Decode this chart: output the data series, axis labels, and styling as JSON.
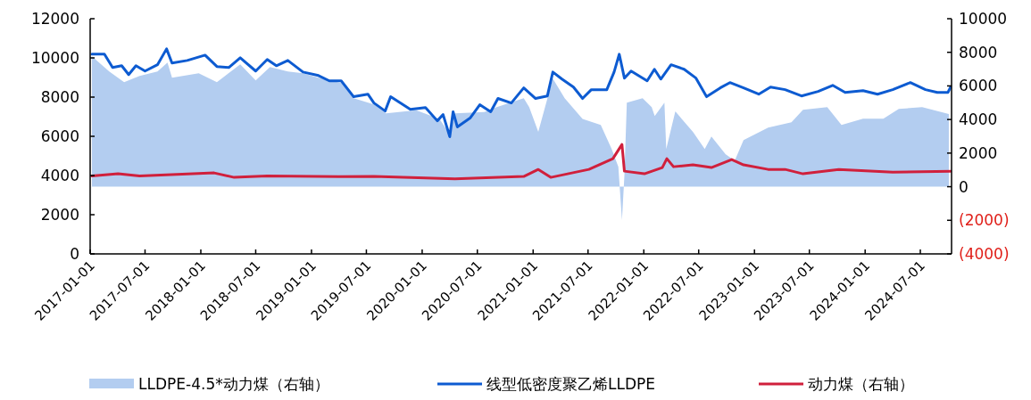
{
  "chart_data": {
    "type": "line",
    "xlim": [
      "2017-01-01",
      "2024-10-12"
    ],
    "xticks": [
      "2017-01-01",
      "2017-07-01",
      "2018-01-01",
      "2018-07-01",
      "2019-01-01",
      "2019-07-01",
      "2020-01-01",
      "2020-07-01",
      "2021-01-01",
      "2021-07-01",
      "2022-01-01",
      "2022-07-01",
      "2023-01-01",
      "2023-07-01",
      "2024-01-01",
      "2024-07-01"
    ],
    "ylim": [
      0,
      12000
    ],
    "yticks": [
      0,
      2000,
      4000,
      6000,
      8000,
      10000,
      12000
    ],
    "y2lim": [
      -4000,
      10000
    ],
    "y2ticks": [
      {
        "value": -4000,
        "label": "(4000)"
      },
      {
        "value": -2000,
        "label": "(2000)"
      },
      0,
      2000,
      4000,
      6000,
      8000,
      10000
    ],
    "grid": false,
    "legend": "bottom",
    "line_style": "solid",
    "marker": "none",
    "series": [
      {
        "name": "LLDPE-4.5*动力煤（右轴）",
        "type": "area",
        "axis": "y2",
        "color": "#b3cdf0",
        "x": [
          "2017-01-07",
          "2017-03-05",
          "2017-04-23",
          "2017-06-13",
          "2017-08-11",
          "2017-09-13",
          "2017-09-28",
          "2017-12-25",
          "2018-02-23",
          "2018-05-11",
          "2018-07-01",
          "2018-08-17",
          "2018-10-15",
          "2018-12-04",
          "2019-01-24",
          "2019-04-09",
          "2019-05-20",
          "2019-07-26",
          "2019-09-04",
          "2019-12-12",
          "2020-02-27",
          "2020-04-01",
          "2020-04-18",
          "2020-07-24",
          "2020-09-03",
          "2020-12-01",
          "2020-12-19",
          "2021-01-18",
          "2021-03-07",
          "2021-04-15",
          "2021-06-13",
          "2021-08-12",
          "2021-09-17",
          "2021-10-09",
          "2021-10-21",
          "2021-10-29",
          "2021-11-06",
          "2021-12-28",
          "2022-01-27",
          "2022-02-06",
          "2022-03-10",
          "2022-03-16",
          "2022-04-15",
          "2022-06-12",
          "2022-07-21",
          "2022-08-12",
          "2022-09-28",
          "2022-10-28",
          "2022-11-26",
          "2023-02-15",
          "2023-05-03",
          "2023-06-10",
          "2023-08-29",
          "2023-10-15",
          "2023-12-25",
          "2024-03-01",
          "2024-04-21",
          "2024-07-07",
          "2024-10-03"
        ],
        "values": [
          7760,
          6860,
          6220,
          6590,
          6860,
          7390,
          6490,
          6750,
          6220,
          7280,
          6330,
          7120,
          6860,
          6750,
          6490,
          6170,
          5270,
          4900,
          4370,
          4550,
          4030,
          3130,
          4370,
          4450,
          4740,
          5270,
          4740,
          3260,
          6430,
          5270,
          4030,
          3680,
          2250,
          1190,
          -1990,
          660,
          5000,
          5270,
          4740,
          4210,
          5000,
          2250,
          4480,
          3260,
          2250,
          2990,
          1930,
          1560,
          2780,
          3520,
          3840,
          4580,
          4740,
          3680,
          4050,
          4050,
          4630,
          4740,
          4320
        ]
      },
      {
        "name": "线型低密度聚乙烯LLDPE",
        "color": "#0d5bd1",
        "x": [
          "2017-01-07",
          "2017-02-17",
          "2017-03-16",
          "2017-04-15",
          "2017-05-08",
          "2017-06-01",
          "2017-07-01",
          "2017-08-11",
          "2017-09-10",
          "2017-09-28",
          "2017-11-17",
          "2018-01-15",
          "2018-02-23",
          "2018-04-03",
          "2018-05-11",
          "2018-07-01",
          "2018-08-08",
          "2018-09-07",
          "2018-10-15",
          "2018-12-04",
          "2019-01-24",
          "2019-03-01",
          "2019-04-09",
          "2019-05-20",
          "2019-07-06",
          "2019-07-26",
          "2019-09-01",
          "2019-09-19",
          "2019-11-23",
          "2020-01-12",
          "2020-02-20",
          "2020-03-10",
          "2020-04-01",
          "2020-04-12",
          "2020-04-26",
          "2020-06-07",
          "2020-07-09",
          "2020-08-14",
          "2020-09-07",
          "2020-10-21",
          "2020-12-01",
          "2021-01-09",
          "2021-02-17",
          "2021-03-07",
          "2021-04-06",
          "2021-05-14",
          "2021-06-13",
          "2021-07-12",
          "2021-09-01",
          "2021-09-25",
          "2021-10-12",
          "2021-10-29",
          "2021-11-20",
          "2022-01-12",
          "2022-02-05",
          "2022-02-26",
          "2022-04-01",
          "2022-05-14",
          "2022-06-22",
          "2022-07-27",
          "2022-09-10",
          "2022-10-12",
          "2022-11-26",
          "2023-01-15",
          "2023-02-23",
          "2023-04-12",
          "2023-06-05",
          "2023-07-30",
          "2023-09-16",
          "2023-10-27",
          "2023-12-25",
          "2024-02-11",
          "2024-04-01",
          "2024-05-29",
          "2024-07-18",
          "2024-08-26",
          "2024-09-30",
          "2024-10-09"
        ],
        "values": [
          10190,
          10190,
          9510,
          9600,
          9150,
          9600,
          9330,
          9650,
          10460,
          9740,
          9870,
          10140,
          9560,
          9510,
          10010,
          9330,
          9920,
          9600,
          9870,
          9280,
          9100,
          8830,
          8830,
          8020,
          8150,
          7700,
          7290,
          8020,
          7380,
          7470,
          6790,
          7110,
          5980,
          7250,
          6480,
          6930,
          7610,
          7250,
          7930,
          7700,
          8470,
          7930,
          8060,
          9280,
          8920,
          8510,
          7930,
          8380,
          8380,
          9280,
          10190,
          8970,
          9330,
          8830,
          9420,
          8920,
          9650,
          9420,
          8970,
          8020,
          8470,
          8740,
          8470,
          8150,
          8510,
          8380,
          8060,
          8290,
          8600,
          8240,
          8330,
          8150,
          8380,
          8740,
          8380,
          8240,
          8240,
          8510
        ]
      },
      {
        "name": "动力煤（右轴）",
        "axis": "y2",
        "color": "#d0203c",
        "x": [
          "2017-01-07",
          "2017-04-03",
          "2017-06-13",
          "2018-02-14",
          "2018-04-21",
          "2018-08-08",
          "2019-04-01",
          "2019-07-26",
          "2020-04-18",
          "2020-12-01",
          "2021-01-18",
          "2021-02-28",
          "2021-07-04",
          "2021-09-21",
          "2021-10-21",
          "2021-10-29",
          "2022-01-03",
          "2022-03-03",
          "2022-03-18",
          "2022-04-09",
          "2022-06-12",
          "2022-08-12",
          "2022-10-18",
          "2022-11-26",
          "2023-02-15",
          "2023-04-12",
          "2023-06-10",
          "2023-10-06",
          "2024-04-01",
          "2024-10-09"
        ],
        "values": [
          635,
          767,
          635,
          820,
          555,
          635,
          600,
          620,
          465,
          610,
          1030,
          555,
          1030,
          1670,
          2515,
          925,
          767,
          1140,
          1670,
          1190,
          1300,
          1140,
          1615,
          1300,
          1030,
          1030,
          767,
          1030,
          870,
          925
        ]
      }
    ]
  }
}
